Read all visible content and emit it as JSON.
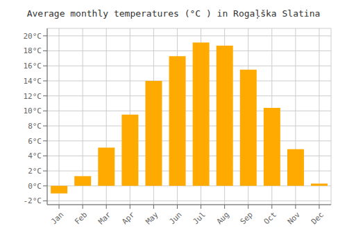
{
  "chart_data": {
    "type": "bar",
    "title": "Average monthly temperatures (°C ) in Rogaļška Slatina",
    "categories": [
      "Jan",
      "Feb",
      "Mar",
      "Apr",
      "May",
      "Jun",
      "Jul",
      "Aug",
      "Sep",
      "Oct",
      "Nov",
      "Dec"
    ],
    "values": [
      -1.0,
      1.3,
      5.1,
      9.5,
      14.0,
      17.3,
      19.1,
      18.7,
      15.5,
      10.4,
      4.9,
      0.3
    ],
    "color": "#FFAA00",
    "ylim": [
      -2.5,
      21
    ],
    "yticks": [
      {
        "value": -2,
        "label": "-2°C"
      },
      {
        "value": 0,
        "label": "0°C"
      },
      {
        "value": 2,
        "label": "2°C"
      },
      {
        "value": 4,
        "label": "4°C"
      },
      {
        "value": 6,
        "label": "6°C"
      },
      {
        "value": 8,
        "label": "8°C"
      },
      {
        "value": 10,
        "label": "10°C"
      },
      {
        "value": 12,
        "label": "12°C"
      },
      {
        "value": 14,
        "label": "14°C"
      },
      {
        "value": 16,
        "label": "16°C"
      },
      {
        "value": 18,
        "label": "18°C"
      },
      {
        "value": 20,
        "label": "20°C"
      }
    ],
    "grid": true
  }
}
